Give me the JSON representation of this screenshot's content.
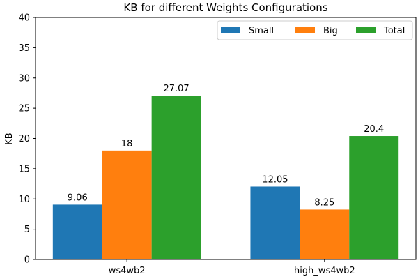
{
  "chart_data": {
    "type": "bar",
    "title": "KB for different Weights Configurations",
    "xlabel": "",
    "ylabel": "KB",
    "categories": [
      "ws4wb2",
      "high_ws4wb2"
    ],
    "series": [
      {
        "name": "Small",
        "values": [
          9.06,
          12.05
        ],
        "labels": [
          "9.06",
          "12.05"
        ],
        "color": "#1f77b4"
      },
      {
        "name": "Big",
        "values": [
          18,
          8.25
        ],
        "labels": [
          "18",
          "8.25"
        ],
        "color": "#ff7f0e"
      },
      {
        "name": "Total",
        "values": [
          27.07,
          20.4
        ],
        "labels": [
          "27.07",
          "20.4"
        ],
        "color": "#2ca02c"
      }
    ],
    "ylim": [
      0,
      40
    ],
    "yticks": [
      0,
      5,
      10,
      15,
      20,
      25,
      30,
      35,
      40
    ],
    "grid": false,
    "legend_position": "top-right"
  }
}
